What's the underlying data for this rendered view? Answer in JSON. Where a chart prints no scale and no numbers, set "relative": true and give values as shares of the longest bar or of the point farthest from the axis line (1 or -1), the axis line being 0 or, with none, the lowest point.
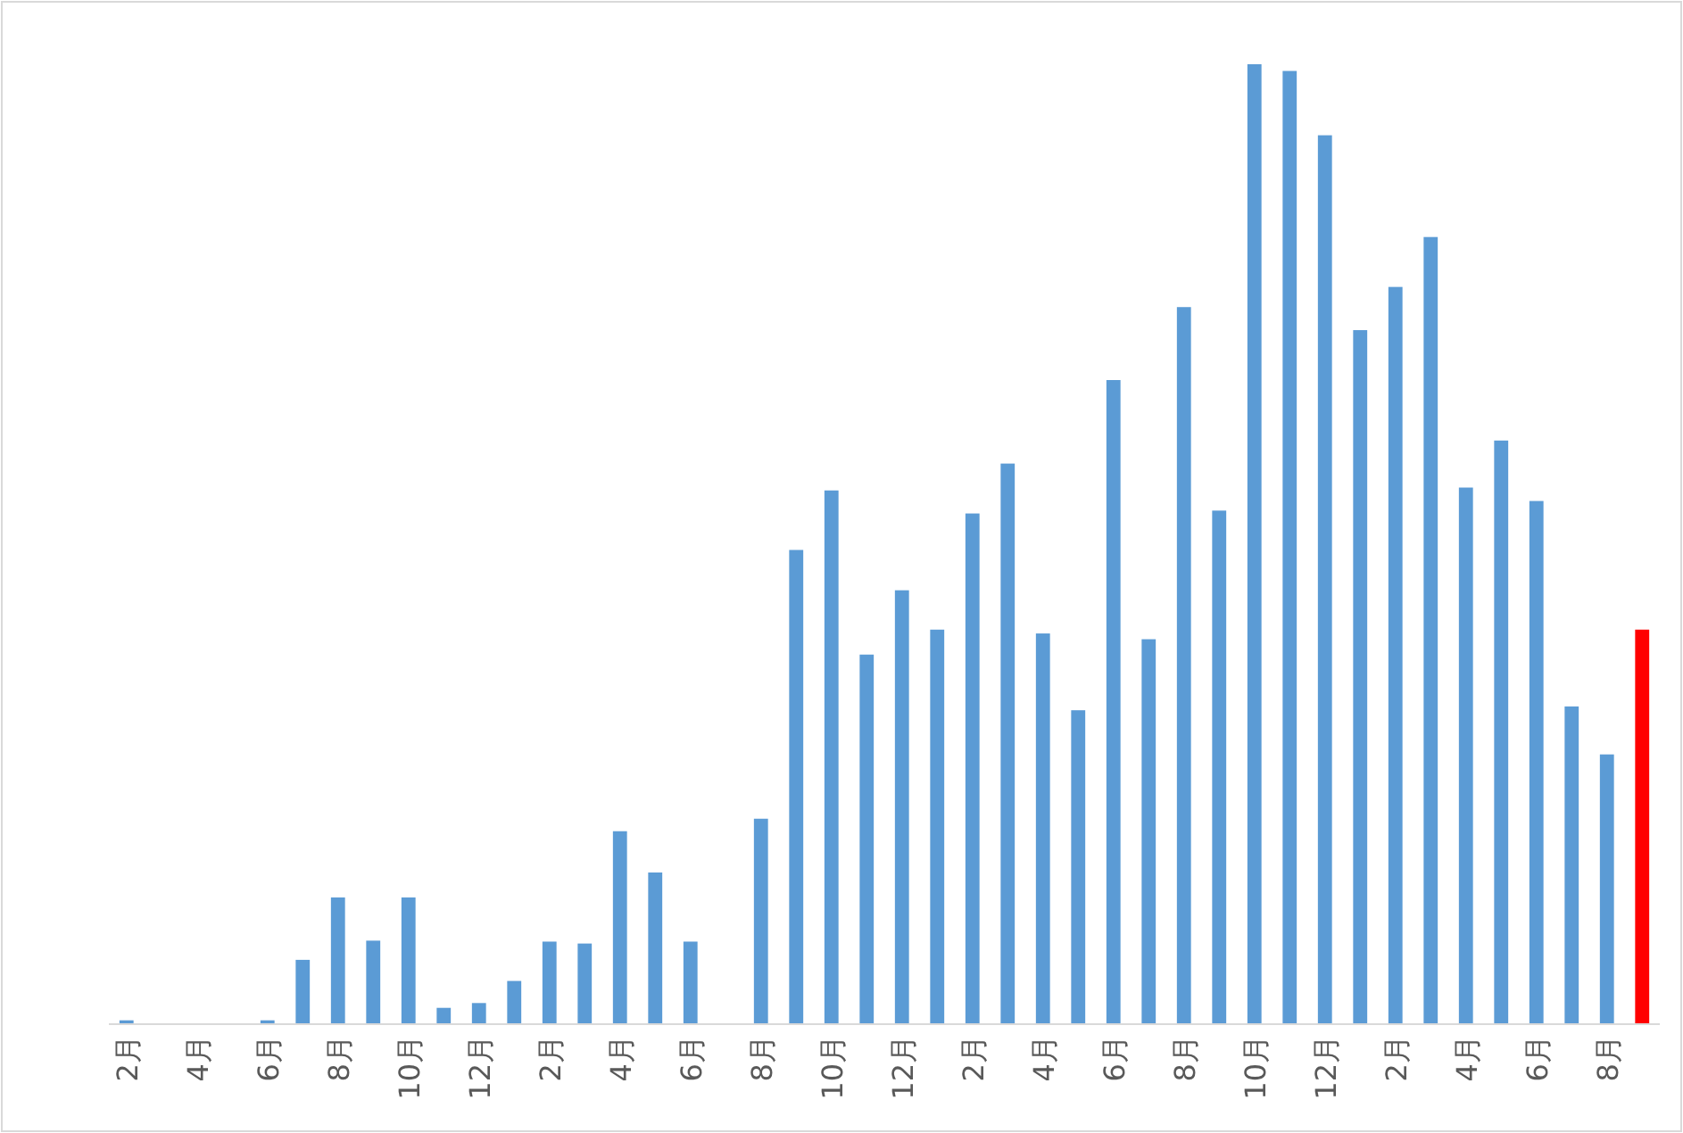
{
  "chart_data": {
    "type": "bar",
    "relative": true,
    "categories": [
      "2月",
      null,
      "4月",
      null,
      "6月",
      null,
      "8月",
      null,
      "10月",
      null,
      "12月",
      null,
      "2月",
      null,
      "4月",
      null,
      "6月",
      null,
      "8月",
      null,
      "10月",
      null,
      "12月",
      null,
      "2月",
      null,
      "4月",
      null,
      "6月",
      null,
      "8月",
      null,
      "10月",
      null,
      "12月",
      null,
      "2月",
      null,
      "4月",
      null,
      "6月",
      null,
      "8月",
      null
    ],
    "values": [
      0.004,
      0,
      0,
      0,
      0.004,
      0.067,
      0.132,
      0.087,
      0.132,
      0.017,
      0.022,
      0.045,
      0.086,
      0.084,
      0.201,
      0.158,
      0.086,
      0,
      0.214,
      0.494,
      0.556,
      0.385,
      0.452,
      0.411,
      0.532,
      0.584,
      0.407,
      0.327,
      0.671,
      0.401,
      0.747,
      0.535,
      1,
      0.993,
      0.926,
      0.723,
      0.768,
      0.82,
      0.559,
      0.608,
      0.545,
      0.331,
      0.281,
      0.411
    ],
    "colors": [
      "#5b9bd5",
      "#5b9bd5",
      "#5b9bd5",
      "#5b9bd5",
      "#5b9bd5",
      "#5b9bd5",
      "#5b9bd5",
      "#5b9bd5",
      "#5b9bd5",
      "#5b9bd5",
      "#5b9bd5",
      "#5b9bd5",
      "#5b9bd5",
      "#5b9bd5",
      "#5b9bd5",
      "#5b9bd5",
      "#5b9bd5",
      "#5b9bd5",
      "#5b9bd5",
      "#5b9bd5",
      "#5b9bd5",
      "#5b9bd5",
      "#5b9bd5",
      "#5b9bd5",
      "#5b9bd5",
      "#5b9bd5",
      "#5b9bd5",
      "#5b9bd5",
      "#5b9bd5",
      "#5b9bd5",
      "#5b9bd5",
      "#5b9bd5",
      "#5b9bd5",
      "#5b9bd5",
      "#5b9bd5",
      "#5b9bd5",
      "#5b9bd5",
      "#5b9bd5",
      "#5b9bd5",
      "#5b9bd5",
      "#5b9bd5",
      "#5b9bd5",
      "#5b9bd5",
      "#ff0000"
    ]
  }
}
